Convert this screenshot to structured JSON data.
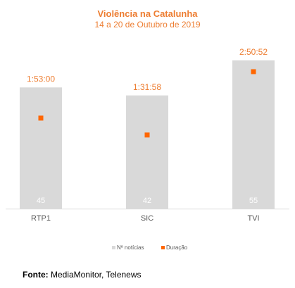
{
  "chart_data": {
    "type": "bar",
    "title": "Violência na Catalunha",
    "subtitle": "14 a 20 de Outubro de 2019",
    "categories": [
      "RTP1",
      "SIC",
      "TVI"
    ],
    "series": [
      {
        "name": "Nº notícias",
        "values": [
          45,
          42,
          55
        ],
        "color": "#d9d9d9",
        "label_color": "#ffffff"
      },
      {
        "name": "Duração",
        "values": [
          "1:53:00",
          "1:31:58",
          "2:50:52"
        ],
        "color": "#ff6600",
        "label_color": "#ed7d31"
      }
    ],
    "grid": false,
    "legend_position": "bottom"
  },
  "source": {
    "label": "Fonte:",
    "text": "MediaMonitor, Telenews"
  }
}
